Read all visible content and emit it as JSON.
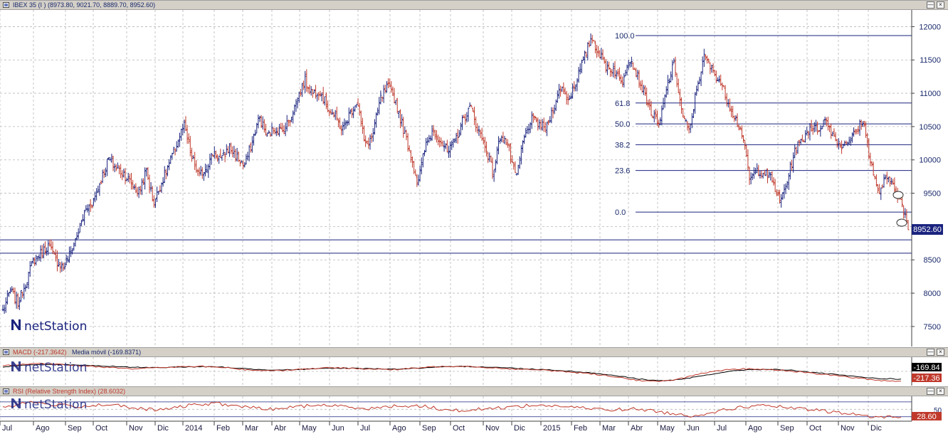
{
  "main_panel": {
    "title": "IBEX 35 (I ) (8973.80, 9021.70, 8889.70, 8952.60)",
    "last_price_label": "8952.60"
  },
  "macd_panel": {
    "title_macd": "MACD (-217.3642)",
    "title_signal": "Media móvil (-169.8371)",
    "signal_label": "-169.84",
    "macd_label": "-217.36"
  },
  "rsi_panel": {
    "title": "RSI (Relative Strength Index) (28.6032)",
    "y_label": "50",
    "value_label": "28.60"
  },
  "watermark": "netStation",
  "colors": {
    "background": "#ffffff",
    "panel_bar": "#d4d0c8",
    "up_bar": "#1a237e",
    "down_bar": "#c0392b",
    "grid": "#b8b8b8",
    "fib_line": "#1a237e",
    "label_box": "#1a237e"
  },
  "chart_data": [
    {
      "type": "line",
      "chart_style": "ohlc-bars",
      "series": [
        {
          "values": [
            7740,
            8050,
            7850,
            8150,
            8480,
            8600,
            8720,
            8500,
            8380,
            8620,
            8920,
            9250,
            9380,
            9700,
            10020,
            9880,
            9800,
            9650,
            9500,
            9850,
            9350,
            9650,
            9930,
            10230,
            10520,
            10050,
            9750,
            9900,
            10120,
            10000,
            10200,
            10050,
            9900,
            10250,
            10650,
            10350,
            10480,
            10420,
            10600,
            10900,
            11200,
            11000,
            11050,
            10800,
            10650,
            10450,
            10700,
            10900,
            10200,
            10350,
            10900,
            11100,
            10900,
            10500,
            10100,
            9650,
            10200,
            10450,
            10300,
            10100,
            10300,
            10600,
            10800,
            10450,
            10200,
            9800,
            10400,
            10200,
            9700,
            10300,
            10600,
            10550,
            10450,
            10800,
            11100,
            10900,
            11200,
            11500,
            11850,
            11600,
            11400,
            11350,
            11150,
            11550,
            11300,
            11000,
            10700,
            10500,
            11100,
            11450,
            10700,
            10400,
            11100,
            11550,
            11350,
            11200,
            10900,
            10650,
            10400,
            9700,
            9850,
            9800,
            9700,
            9350,
            9700,
            10150,
            10300,
            10500,
            10450,
            10600,
            10400,
            10200,
            10300,
            10400,
            10600,
            10000,
            9500,
            9700,
            9650,
            9400,
            8952.6
          ]
        }
      ],
      "x_labels": [
        "Jul",
        "Ago",
        "Sep",
        "Oct",
        "Nov",
        "Dic",
        "2014",
        "Feb",
        "Mar",
        "Abr",
        "May",
        "Jun",
        "Jul",
        "Ago",
        "Sep",
        "Oct",
        "Nov",
        "Dic",
        "2015",
        "Feb",
        "Mar",
        "Abr",
        "May",
        "Jun",
        "Jul",
        "Ago",
        "Sep",
        "Oct",
        "Nov",
        "Dic"
      ],
      "y_ticks": [
        7500,
        8000,
        8500,
        9000,
        9500,
        10000,
        10500,
        11000,
        11500,
        12000
      ],
      "ylim": [
        7200,
        12250
      ],
      "grid": true,
      "fibonacci": {
        "levels": [
          "100.0",
          "61.8",
          "50.0",
          "38.2",
          "23.6",
          "0.0"
        ],
        "high": 11866,
        "low": 9216
      },
      "horizontal_lines": [
        8800,
        8600
      ],
      "last_value": 8952.6
    },
    {
      "type": "line",
      "indicator": "MACD",
      "series": [
        {
          "name": "MACD (-217.3642)",
          "values": [
            120,
            160,
            170,
            140,
            110,
            90,
            60,
            80,
            100,
            110,
            90,
            40,
            20,
            30,
            60,
            80,
            70,
            50,
            40,
            80,
            110,
            120,
            90,
            60,
            40,
            20,
            -20,
            -60,
            -120,
            -200,
            -230,
            -150,
            -40,
            30,
            60,
            40,
            10,
            -50,
            -90,
            -150,
            -200,
            -217.36
          ]
        },
        {
          "name": "Media móvil (-169.8371)",
          "values": [
            100,
            140,
            160,
            150,
            130,
            110,
            90,
            85,
            95,
            105,
            95,
            60,
            35,
            35,
            50,
            70,
            70,
            60,
            50,
            70,
            95,
            110,
            100,
            80,
            55,
            35,
            0,
            -40,
            -95,
            -165,
            -210,
            -180,
            -90,
            -10,
            40,
            45,
            25,
            -25,
            -70,
            -120,
            -160,
            -169.84
          ]
        }
      ],
      "ylim": [
        -300,
        300
      ]
    },
    {
      "type": "line",
      "indicator": "RSI",
      "series": [
        {
          "name": "RSI (Relative Strength Index) (28.6032)",
          "values": [
            55,
            70,
            62,
            58,
            64,
            52,
            48,
            60,
            66,
            58,
            50,
            56,
            62,
            57,
            52,
            60,
            58,
            46,
            50,
            55,
            61,
            59,
            53,
            49,
            51,
            42,
            32,
            44,
            57,
            60,
            52,
            46,
            38,
            30,
            28.6
          ]
        }
      ],
      "y_ticks": [
        50
      ],
      "ylim": [
        20,
        85
      ]
    }
  ]
}
